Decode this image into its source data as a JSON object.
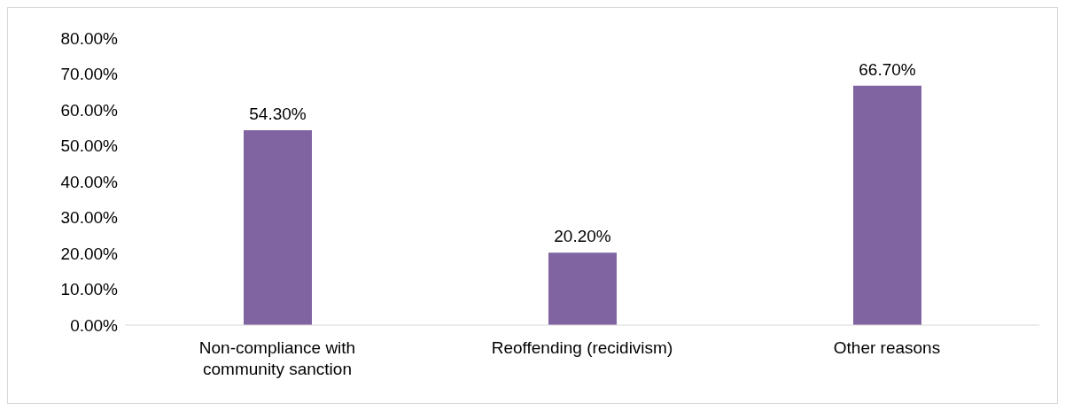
{
  "chart_data": {
    "type": "bar",
    "categories": [
      "Non-compliance with community sanction",
      "Reoffending (recidivism)",
      "Other reasons"
    ],
    "values": [
      54.3,
      20.2,
      66.7
    ],
    "value_labels": [
      "54.30%",
      "20.20%",
      "66.70%"
    ],
    "color": "#8064a2",
    "ylim": [
      0,
      80
    ],
    "yticks": [
      {
        "value": 0,
        "label": "0.00%"
      },
      {
        "value": 10,
        "label": "10.00%"
      },
      {
        "value": 20,
        "label": "20.00%"
      },
      {
        "value": 30,
        "label": "30.00%"
      },
      {
        "value": 40,
        "label": "40.00%"
      },
      {
        "value": 50,
        "label": "50.00%"
      },
      {
        "value": 60,
        "label": "60.00%"
      },
      {
        "value": 70,
        "label": "70.00%"
      },
      {
        "value": 80,
        "label": "80.00%"
      }
    ]
  }
}
